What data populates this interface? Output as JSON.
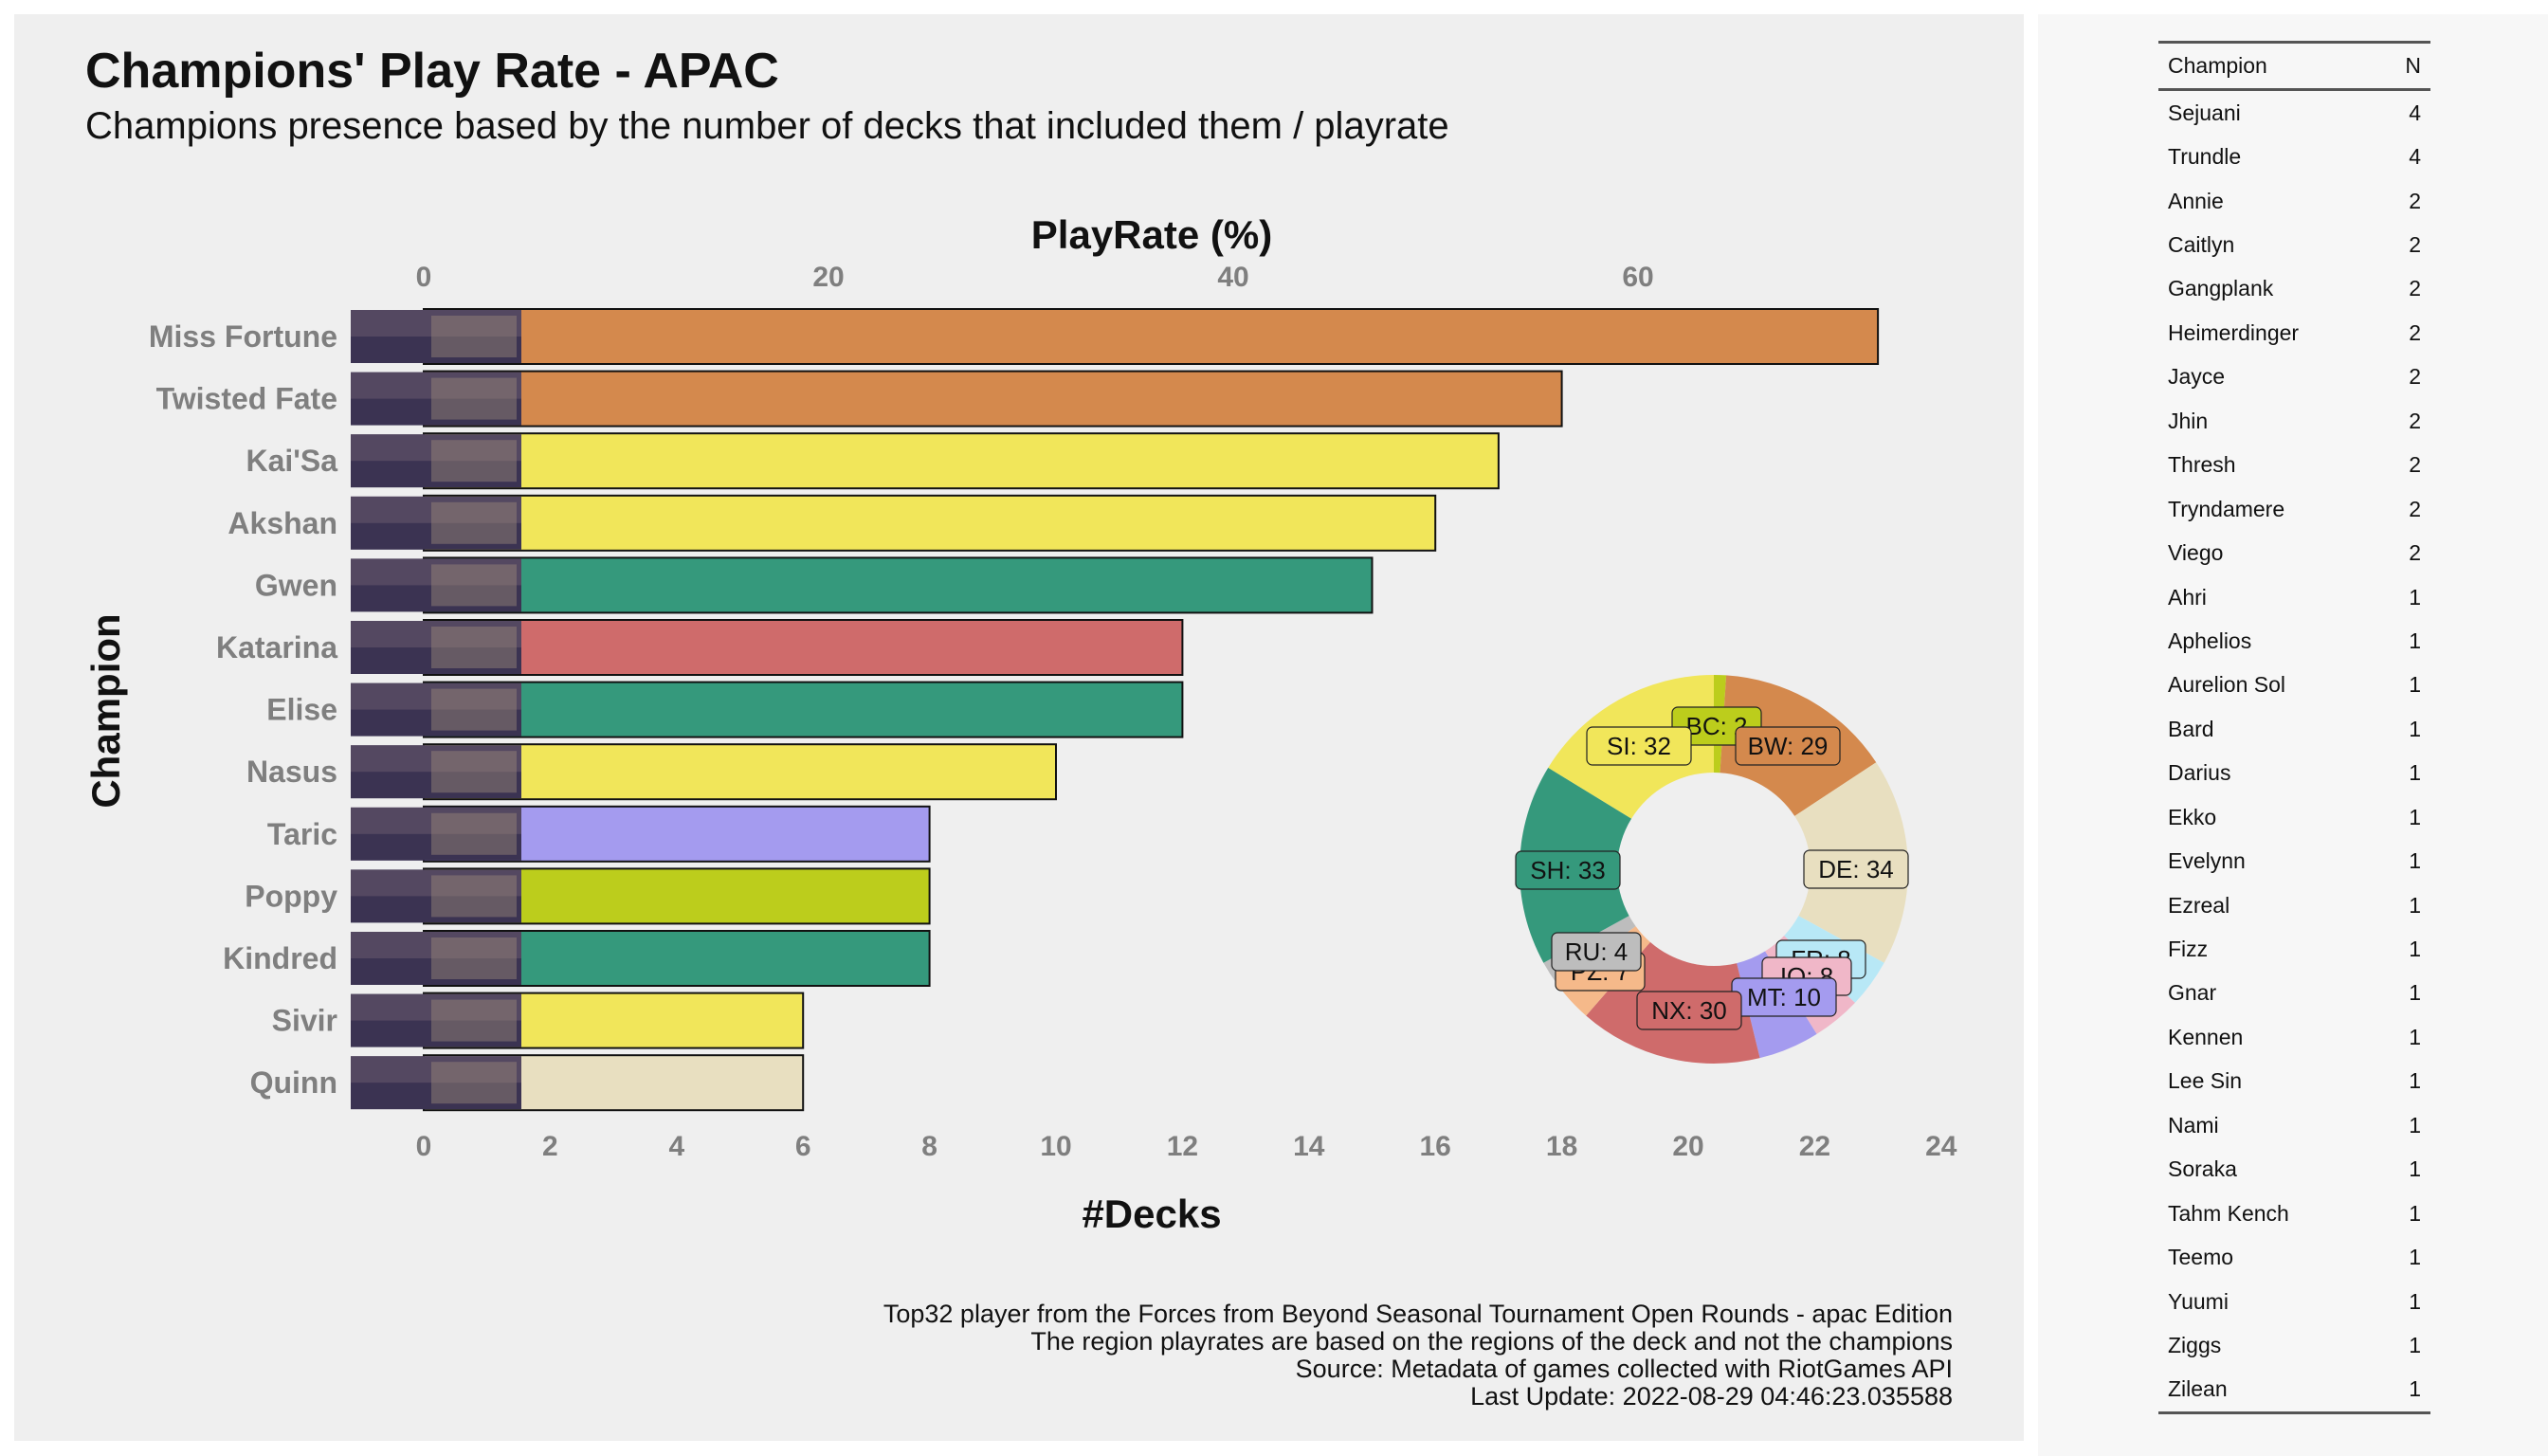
{
  "chart_data": [
    {
      "type": "bar",
      "title": "Champions' Play Rate - APAC",
      "subtitle": "Champions presence based by the number of decks that included them / playrate",
      "xlabel": "#Decks",
      "xlabel_top": "PlayRate (%)",
      "ylabel": "Champion",
      "orientation": "horizontal",
      "xlim": [
        0,
        24
      ],
      "x_ticks": [
        0,
        2,
        4,
        6,
        8,
        10,
        12,
        14,
        16,
        18,
        20,
        22,
        24
      ],
      "x_top_ticks": [
        0,
        20,
        40,
        60
      ],
      "x_top_lim": [
        0,
        75
      ],
      "grid": false,
      "categories": [
        "Miss Fortune",
        "Twisted Fate",
        "Kai'Sa",
        "Akshan",
        "Gwen",
        "Katarina",
        "Elise",
        "Nasus",
        "Taric",
        "Poppy",
        "Kindred",
        "Sivir",
        "Quinn"
      ],
      "values": [
        23,
        18,
        17,
        16,
        15,
        12,
        12,
        10,
        8,
        8,
        8,
        6,
        6
      ],
      "bar_colors": [
        "#d4894d",
        "#d4894d",
        "#f1e65a",
        "#f1e65a",
        "#35997c",
        "#cf6b6b",
        "#35997c",
        "#f1e65a",
        "#a49bef",
        "#bccd1c",
        "#35997c",
        "#f1e65a",
        "#e8dfc0"
      ],
      "caption": [
        "Top32 player from the Forces from Beyond Seasonal Tournament Open Rounds - apac Edition",
        "The region playrates are based on the regions of the deck and not the champions",
        "Source: Metadata of games collected with RiotGames API",
        "Last Update: 2022-08-29 04:46:23.035588"
      ]
    },
    {
      "type": "pie",
      "style": "donut",
      "slices": [
        {
          "label": "BC: 2",
          "value": 2,
          "color": "#bccd1c"
        },
        {
          "label": "BW: 29",
          "value": 29,
          "color": "#d4894d"
        },
        {
          "label": "DE: 34",
          "value": 34,
          "color": "#e8dfc0"
        },
        {
          "label": "FR: 8",
          "value": 8,
          "color": "#b8e8f6"
        },
        {
          "label": "IO: 8",
          "value": 8,
          "color": "#f0b7c8"
        },
        {
          "label": "MT: 10",
          "value": 10,
          "color": "#a49bef"
        },
        {
          "label": "NX: 30",
          "value": 30,
          "color": "#cf6b6b"
        },
        {
          "label": "PZ: 7",
          "value": 7,
          "color": "#f5b98a"
        },
        {
          "label": "RU: 4",
          "value": 4,
          "color": "#bdbdbd"
        },
        {
          "label": "SH: 33",
          "value": 33,
          "color": "#35997c"
        },
        {
          "label": "SI: 32",
          "value": 32,
          "color": "#f1e65a"
        }
      ]
    }
  ],
  "table": {
    "headers": [
      "Champion",
      "N"
    ],
    "rows": [
      [
        "Sejuani",
        "4"
      ],
      [
        "Trundle",
        "4"
      ],
      [
        "Annie",
        "2"
      ],
      [
        "Caitlyn",
        "2"
      ],
      [
        "Gangplank",
        "2"
      ],
      [
        "Heimerdinger",
        "2"
      ],
      [
        "Jayce",
        "2"
      ],
      [
        "Jhin",
        "2"
      ],
      [
        "Thresh",
        "2"
      ],
      [
        "Tryndamere",
        "2"
      ],
      [
        "Viego",
        "2"
      ],
      [
        "Ahri",
        "1"
      ],
      [
        "Aphelios",
        "1"
      ],
      [
        "Aurelion Sol",
        "1"
      ],
      [
        "Bard",
        "1"
      ],
      [
        "Darius",
        "1"
      ],
      [
        "Ekko",
        "1"
      ],
      [
        "Evelynn",
        "1"
      ],
      [
        "Ezreal",
        "1"
      ],
      [
        "Fizz",
        "1"
      ],
      [
        "Gnar",
        "1"
      ],
      [
        "Kennen",
        "1"
      ],
      [
        "Lee Sin",
        "1"
      ],
      [
        "Nami",
        "1"
      ],
      [
        "Soraka",
        "1"
      ],
      [
        "Tahm Kench",
        "1"
      ],
      [
        "Teemo",
        "1"
      ],
      [
        "Yuumi",
        "1"
      ],
      [
        "Ziggs",
        "1"
      ],
      [
        "Zilean",
        "1"
      ]
    ]
  }
}
